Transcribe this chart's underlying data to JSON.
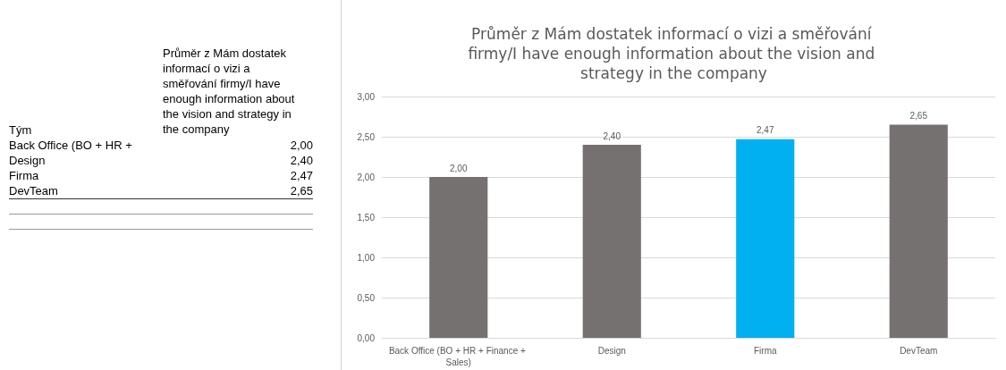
{
  "chart_data": {
    "type": "bar",
    "title": "Průměr z Mám dostatek informací o vizi a směřování firmy/I have enough information about the vision and strategy in the company",
    "categories": [
      "Back Office (BO + HR + Finance + Sales)",
      "Design",
      "Firma",
      "DevTeam"
    ],
    "values": [
      2.0,
      2.4,
      2.47,
      2.65
    ],
    "colors": [
      "#767171",
      "#767171",
      "#00b0f0",
      "#767171"
    ],
    "value_labels": [
      "2,00",
      "2,40",
      "2,47",
      "2,65"
    ],
    "ylim": [
      0,
      3
    ],
    "yticks": [
      {
        "value": 0,
        "label": "0,00"
      },
      {
        "value": 0.5,
        "label": "0,50"
      },
      {
        "value": 1,
        "label": "1,00"
      },
      {
        "value": 1.5,
        "label": "1,50"
      },
      {
        "value": 2,
        "label": "2,00"
      },
      {
        "value": 2.5,
        "label": "2,50"
      },
      {
        "value": 3,
        "label": "3,00"
      }
    ],
    "grid": "y",
    "annotations": [
      "Tým",
      "Průměr z Mám dostatek informací o vizi a směřování firmy/I have enough information about the vision and strategy in the company",
      "Back Office (BO + HR +"
    ]
  }
}
